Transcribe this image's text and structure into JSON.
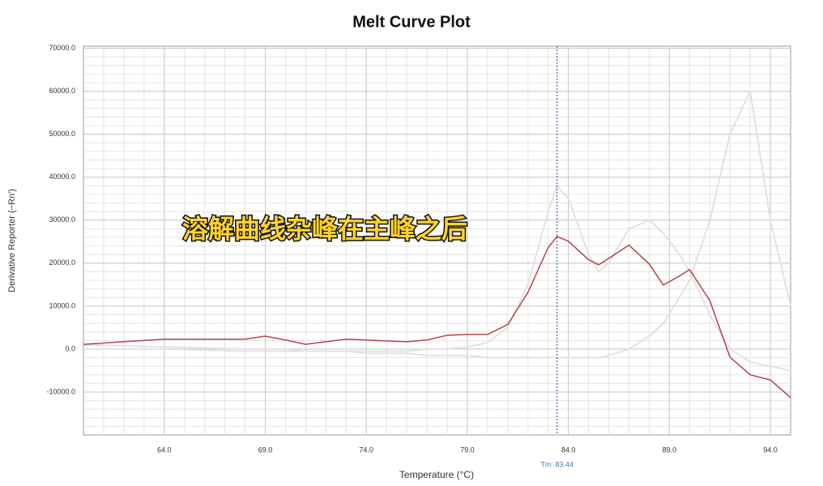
{
  "chart_data": {
    "type": "line",
    "title": "Melt Curve Plot",
    "x_label": "Temperature (°C)",
    "y_label": "Derivative Reporter (−Rn')",
    "overlay_text": "溶解曲线杂峰在主峰之后",
    "annotations": [
      {
        "text": "Tm: 83.44",
        "x": 83.44
      }
    ],
    "x": [
      60,
      64,
      68,
      69,
      70,
      71,
      72,
      73,
      74,
      75,
      76,
      77,
      78,
      79,
      80,
      81,
      82,
      83,
      83.44,
      84,
      85,
      85.5,
      86,
      87,
      88,
      88.7,
      89.5,
      90,
      91,
      92,
      93,
      94,
      95
    ],
    "series": [
      {
        "color": "#e2e2e2",
        "values": [
          0,
          0,
          -500,
          -500,
          -500,
          -500,
          -500,
          -500,
          -500,
          -500,
          -500,
          0,
          0,
          500,
          1500,
          5000,
          15000,
          32000,
          38000,
          35000,
          22000,
          18000,
          20000,
          28000,
          30000,
          27000,
          22000,
          18000,
          8000,
          0,
          -3000,
          -4000,
          -5000
        ]
      },
      {
        "color": "#e2e2e2",
        "values": [
          1000,
          500,
          0,
          0,
          0,
          -500,
          -500,
          -500,
          -1000,
          -1000,
          -1000,
          -1500,
          -1500,
          -1500,
          -2000,
          -2000,
          -2000,
          -2000,
          -2000,
          -2000,
          -2000,
          -2000,
          -1500,
          0,
          3000,
          6000,
          12000,
          16000,
          30000,
          50000,
          60000,
          30000,
          10000
        ]
      },
      {
        "color": "#b5434a",
        "values": [
          1100,
          2300,
          2300,
          3000,
          2100,
          1100,
          1700,
          2300,
          2100,
          1900,
          1700,
          2100,
          3200,
          3400,
          3400,
          5700,
          13200,
          23600,
          26200,
          25100,
          20800,
          19600,
          21100,
          24200,
          19800,
          14900,
          17000,
          18500,
          11300,
          -1900,
          -6000,
          -7200,
          -11300
        ]
      }
    ],
    "xlim": [
      60,
      95
    ],
    "xticks": [
      {
        "value": 64,
        "label": "64.0"
      },
      {
        "value": 69,
        "label": "69.0"
      },
      {
        "value": 74,
        "label": "74.0"
      },
      {
        "value": 79,
        "label": "79.0"
      },
      {
        "value": 84,
        "label": "84.0"
      },
      {
        "value": 89,
        "label": "89.0"
      },
      {
        "value": 94,
        "label": "94.0"
      }
    ],
    "ylim": [
      -20000,
      70500
    ],
    "yticks": [
      {
        "value": -10000,
        "label": "-10000.0"
      },
      {
        "value": 0,
        "label": "0.0"
      },
      {
        "value": 10000,
        "label": "10000.0"
      },
      {
        "value": 20000,
        "label": "20000.0"
      },
      {
        "value": 30000,
        "label": "30000.0"
      },
      {
        "value": 40000,
        "label": "40000.0"
      },
      {
        "value": 50000,
        "label": "50000.0"
      },
      {
        "value": 60000,
        "label": "60000.0"
      },
      {
        "value": 70000,
        "label": "70000.0"
      }
    ],
    "grid": true
  }
}
